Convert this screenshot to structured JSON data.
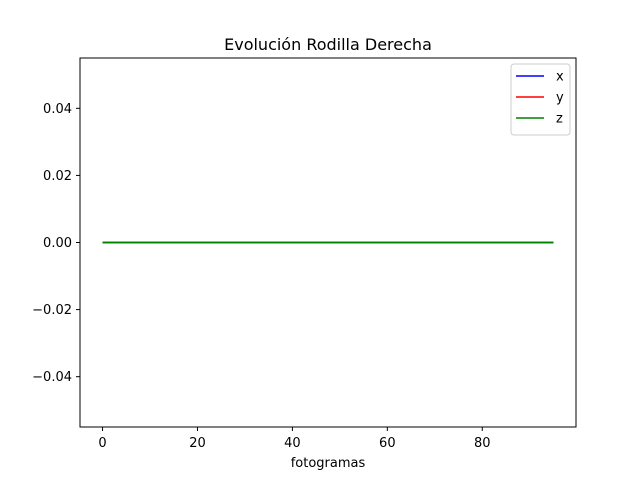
{
  "chart_data": {
    "type": "line",
    "title": "Evolución Rodilla Derecha",
    "xlabel": "fotogramas",
    "ylabel": "",
    "xlim": [
      -4.75,
      99.75
    ],
    "ylim": [
      -0.055,
      0.055
    ],
    "x_ticks": [
      0,
      20,
      40,
      60,
      80
    ],
    "x_tick_labels": [
      "0",
      "20",
      "40",
      "60",
      "80"
    ],
    "y_ticks": [
      -0.04,
      -0.02,
      0.0,
      0.02,
      0.04
    ],
    "y_tick_labels": [
      "−0.04",
      "−0.02",
      "0.00",
      "0.02",
      "0.04"
    ],
    "x": [
      0,
      95
    ],
    "series": [
      {
        "name": "x",
        "color": "#0000ff",
        "values": [
          0,
          0
        ]
      },
      {
        "name": "y",
        "color": "#ff0000",
        "values": [
          0,
          0
        ]
      },
      {
        "name": "z",
        "color": "#008000",
        "values": [
          0,
          0
        ]
      }
    ],
    "grid": false,
    "legend_position": "top-right"
  }
}
